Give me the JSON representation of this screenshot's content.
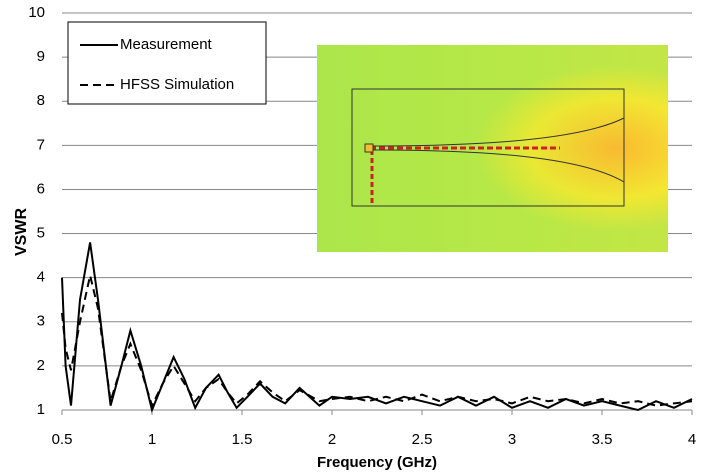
{
  "chart_data": {
    "type": "line",
    "x_label": "Frequency (GHz)",
    "y_label": "VSWR",
    "x": [
      0.5,
      0.52,
      0.55,
      0.6,
      0.656,
      0.7,
      0.77,
      0.83,
      0.88,
      0.94,
      1.0,
      1.06,
      1.12,
      1.18,
      1.24,
      1.3,
      1.37,
      1.42,
      1.47,
      1.53,
      1.6,
      1.67,
      1.74,
      1.82,
      1.93,
      2.0,
      2.1,
      2.2,
      2.3,
      2.4,
      2.5,
      2.6,
      2.7,
      2.8,
      2.9,
      3.0,
      3.1,
      3.2,
      3.3,
      3.4,
      3.5,
      3.6,
      3.7,
      3.8,
      3.9,
      4.0
    ],
    "series": [
      {
        "name": "Measurement",
        "color": "#000000",
        "dash": false,
        "values": [
          4.0,
          2.0,
          1.1,
          3.5,
          4.8,
          3.5,
          1.1,
          2.0,
          2.8,
          2.0,
          1.0,
          1.6,
          2.2,
          1.7,
          1.05,
          1.5,
          1.8,
          1.4,
          1.05,
          1.3,
          1.6,
          1.3,
          1.15,
          1.5,
          1.1,
          1.3,
          1.25,
          1.3,
          1.15,
          1.3,
          1.2,
          1.1,
          1.3,
          1.1,
          1.3,
          1.05,
          1.2,
          1.05,
          1.25,
          1.1,
          1.2,
          1.1,
          1.0,
          1.2,
          1.05,
          1.25
        ]
      },
      {
        "name": "HFSS Simulation",
        "color": "#000000",
        "dash": true,
        "values": [
          3.2,
          2.4,
          1.9,
          3.0,
          4.05,
          3.3,
          1.2,
          2.0,
          2.5,
          1.9,
          1.1,
          1.6,
          2.0,
          1.6,
          1.2,
          1.5,
          1.7,
          1.4,
          1.15,
          1.35,
          1.65,
          1.4,
          1.2,
          1.45,
          1.2,
          1.25,
          1.3,
          1.2,
          1.3,
          1.2,
          1.35,
          1.2,
          1.3,
          1.2,
          1.25,
          1.15,
          1.3,
          1.2,
          1.25,
          1.15,
          1.25,
          1.15,
          1.2,
          1.1,
          1.15,
          1.2
        ]
      }
    ],
    "xlim": [
      0.5,
      4
    ],
    "xticks": [
      0.5,
      1,
      1.5,
      2,
      2.5,
      3,
      3.5,
      4
    ],
    "ylim": [
      1,
      10
    ],
    "yticks": [
      1,
      2,
      3,
      4,
      5,
      6,
      7,
      8,
      9,
      10
    ],
    "grid": true,
    "legend": "upper left"
  }
}
